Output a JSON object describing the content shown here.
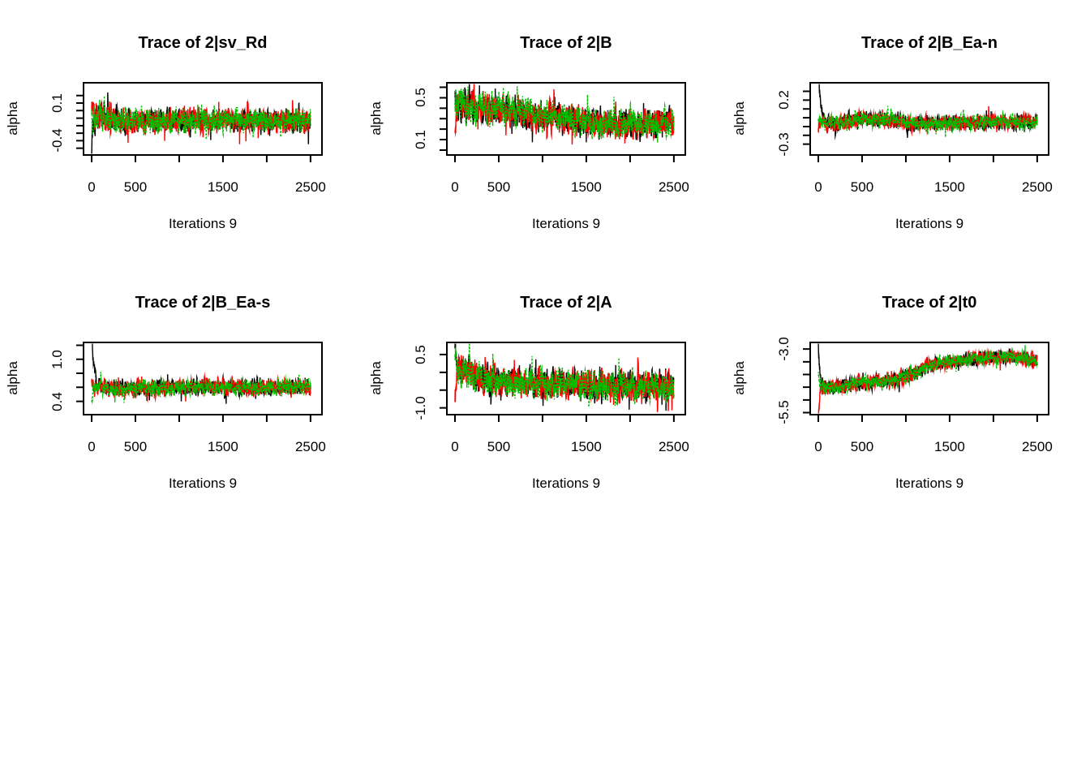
{
  "figure": {
    "background": "#ffffff",
    "kind": "mcmc-trace-plot-grid",
    "rows": 2,
    "cols": 3
  },
  "chain_colors": {
    "chain1": "#000000",
    "chain2": "#FF0000",
    "chain3": "#00BF00"
  },
  "chart_data": [
    {
      "type": "line",
      "title": "Trace of 2|sv_Rd",
      "xlabel": "Iterations 9",
      "ylabel": "alpha",
      "x_range": [
        0,
        2500
      ],
      "xticks": [
        0,
        500,
        1000,
        1500,
        2000,
        2500
      ],
      "xtick_labels": [
        {
          "value": 0,
          "text": "0"
        },
        {
          "value": 500,
          "text": "500"
        },
        {
          "value": 1500,
          "text": "1500"
        },
        {
          "value": 2500,
          "text": "2500"
        }
      ],
      "ylim": [
        -0.59,
        0.37
      ],
      "yticks": [
        0.2,
        0.1,
        0.0,
        -0.1,
        -0.2,
        -0.3,
        -0.4,
        -0.5
      ],
      "ytick_labels": [
        {
          "value": 0.1,
          "text": "0.1"
        },
        {
          "value": -0.4,
          "text": "-0.4"
        }
      ],
      "grid": false,
      "legend": "none",
      "mean_path": [
        [
          0,
          -0.07
        ],
        [
          250,
          -0.11
        ],
        [
          600,
          -0.13
        ],
        [
          2500,
          -0.14
        ]
      ],
      "noise_amp": [
        [
          0,
          0.15
        ],
        [
          450,
          0.12
        ],
        [
          2500,
          0.12
        ]
      ],
      "series": [
        {
          "name": "chain-1",
          "color": "#000000",
          "dash": [],
          "seed": 101,
          "start": -0.68,
          "tau": 10
        },
        {
          "name": "chain-2",
          "color": "#FF0000",
          "dash": [],
          "seed": 102,
          "start": -0.02,
          "tau": 10
        },
        {
          "name": "chain-3",
          "color": "#00BF00",
          "dash": [
            2.5,
            1.8
          ],
          "seed": 103,
          "start": -0.18,
          "tau": 10
        }
      ]
    },
    {
      "type": "line",
      "title": "Trace of 2|B",
      "xlabel": "Iterations 9",
      "ylabel": "alpha",
      "x_range": [
        0,
        2500
      ],
      "xticks": [
        0,
        500,
        1000,
        1500,
        2000,
        2500
      ],
      "xtick_labels": [
        {
          "value": 0,
          "text": "0"
        },
        {
          "value": 500,
          "text": "500"
        },
        {
          "value": 1500,
          "text": "1500"
        },
        {
          "value": 2500,
          "text": "2500"
        }
      ],
      "ylim": [
        -0.047,
        0.643
      ],
      "yticks": [
        0.6,
        0.5,
        0.4,
        0.3,
        0.2,
        0.1,
        0.0
      ],
      "ytick_labels": [
        {
          "value": 0.5,
          "text": "0.5"
        },
        {
          "value": 0.1,
          "text": "0.1"
        }
      ],
      "grid": false,
      "legend": "none",
      "mean_path": [
        [
          0,
          0.42
        ],
        [
          400,
          0.4
        ],
        [
          900,
          0.33
        ],
        [
          1600,
          0.26
        ],
        [
          2100,
          0.25
        ],
        [
          2500,
          0.27
        ]
      ],
      "noise_amp": [
        [
          0,
          0.11
        ],
        [
          2500,
          0.1
        ]
      ],
      "series": [
        {
          "name": "chain-1",
          "color": "#000000",
          "dash": [],
          "seed": 201,
          "start": 0.52,
          "tau": 10
        },
        {
          "name": "chain-2",
          "color": "#FF0000",
          "dash": [],
          "seed": 202,
          "start": 0.07,
          "tau": 10
        },
        {
          "name": "chain-3",
          "color": "#00BF00",
          "dash": [
            2.5,
            1.8
          ],
          "seed": 203,
          "start": 0.5,
          "tau": 10
        }
      ]
    },
    {
      "type": "line",
      "title": "Trace of 2|B_Ea-n",
      "xlabel": "Iterations 9",
      "ylabel": "alpha",
      "x_range": [
        0,
        2500
      ],
      "xticks": [
        0,
        500,
        1000,
        1500,
        2000,
        2500
      ],
      "xtick_labels": [
        {
          "value": 0,
          "text": "0"
        },
        {
          "value": 500,
          "text": "500"
        },
        {
          "value": 1500,
          "text": "1500"
        },
        {
          "value": 2500,
          "text": "2500"
        }
      ],
      "ylim": [
        -0.423,
        0.397
      ],
      "yticks": [
        0.3,
        0.2,
        0.1,
        0.0,
        -0.1,
        -0.2,
        -0.3
      ],
      "ytick_labels": [
        {
          "value": 0.2,
          "text": "0.2"
        },
        {
          "value": -0.3,
          "text": "-0.3"
        }
      ],
      "grid": false,
      "legend": "none",
      "mean_path": [
        [
          0,
          -0.06
        ],
        [
          200,
          -0.07
        ],
        [
          500,
          -0.01
        ],
        [
          800,
          -0.03
        ],
        [
          1200,
          -0.07
        ],
        [
          1800,
          -0.05
        ],
        [
          2500,
          -0.045
        ]
      ],
      "noise_amp": [
        [
          0,
          0.065
        ],
        [
          2500,
          0.062
        ]
      ],
      "series": [
        {
          "name": "chain-1",
          "color": "#000000",
          "dash": [],
          "seed": 301,
          "start": 0.55,
          "tau": 28
        },
        {
          "name": "chain-2",
          "color": "#FF0000",
          "dash": [],
          "seed": 302,
          "start": -0.18,
          "tau": 10
        },
        {
          "name": "chain-3",
          "color": "#00BF00",
          "dash": [
            2.5,
            1.8
          ],
          "seed": 303,
          "start": -0.05,
          "tau": 10
        }
      ]
    },
    {
      "type": "line",
      "title": "Trace of 2|B_Ea-s",
      "xlabel": "Iterations 9",
      "ylabel": "alpha",
      "x_range": [
        0,
        2500
      ],
      "xticks": [
        0,
        500,
        1000,
        1500,
        2000,
        2500
      ],
      "xtick_labels": [
        {
          "value": 0,
          "text": "0"
        },
        {
          "value": 500,
          "text": "500"
        },
        {
          "value": 1500,
          "text": "1500"
        },
        {
          "value": 2500,
          "text": "2500"
        }
      ],
      "ylim": [
        0.21,
        1.24
      ],
      "yticks": [
        1.2,
        1.0,
        0.8,
        0.6,
        0.4
      ],
      "ytick_labels": [
        {
          "value": 1.0,
          "text": "1.0"
        },
        {
          "value": 0.4,
          "text": "0.4"
        }
      ],
      "grid": false,
      "legend": "none",
      "mean_path": [
        [
          0,
          0.6
        ],
        [
          300,
          0.58
        ],
        [
          1200,
          0.6
        ],
        [
          2500,
          0.6
        ]
      ],
      "noise_amp": [
        [
          0,
          0.085
        ],
        [
          2500,
          0.083
        ]
      ],
      "series": [
        {
          "name": "chain-1",
          "color": "#000000",
          "dash": [],
          "seed": 401,
          "start": 1.5,
          "tau": 22
        },
        {
          "name": "chain-2",
          "color": "#FF0000",
          "dash": [],
          "seed": 402,
          "start": 0.62,
          "tau": 10
        },
        {
          "name": "chain-3",
          "color": "#00BF00",
          "dash": [
            2.5,
            1.8
          ],
          "seed": 403,
          "start": 0.45,
          "tau": 10
        }
      ]
    },
    {
      "type": "line",
      "title": "Trace of 2|A",
      "xlabel": "Iterations 9",
      "ylabel": "alpha",
      "x_range": [
        0,
        2500
      ],
      "xticks": [
        0,
        500,
        1000,
        1500,
        2000,
        2500
      ],
      "xtick_labels": [
        {
          "value": 0,
          "text": "0"
        },
        {
          "value": 500,
          "text": "500"
        },
        {
          "value": 1500,
          "text": "1500"
        },
        {
          "value": 2500,
          "text": "2500"
        }
      ],
      "ylim": [
        -1.19,
        0.84
      ],
      "yticks": [
        0.5,
        0.0,
        -0.5,
        -1.0
      ],
      "ytick_labels": [
        {
          "value": 0.5,
          "text": "0.5"
        },
        {
          "value": -1.0,
          "text": "-1.0"
        }
      ],
      "grid": false,
      "legend": "none",
      "mean_path": [
        [
          0,
          0.05
        ],
        [
          150,
          0.0
        ],
        [
          450,
          -0.25
        ],
        [
          1200,
          -0.35
        ],
        [
          2500,
          -0.4
        ]
      ],
      "noise_amp": [
        [
          0,
          0.35
        ],
        [
          600,
          0.31
        ],
        [
          2500,
          0.31
        ]
      ],
      "series": [
        {
          "name": "chain-1",
          "color": "#000000",
          "dash": [],
          "seed": 501,
          "start": 0.88,
          "tau": 14
        },
        {
          "name": "chain-2",
          "color": "#FF0000",
          "dash": [],
          "seed": 502,
          "start": -1.15,
          "tau": 12
        },
        {
          "name": "chain-3",
          "color": "#00BF00",
          "dash": [
            2.5,
            1.8
          ],
          "seed": 503,
          "start": 0.35,
          "tau": 10
        }
      ]
    },
    {
      "type": "line",
      "title": "Trace of 2|t0",
      "xlabel": "Iterations 9",
      "ylabel": "alpha",
      "x_range": [
        0,
        2500
      ],
      "xticks": [
        0,
        500,
        1000,
        1500,
        2000,
        2500
      ],
      "xtick_labels": [
        {
          "value": 0,
          "text": "0"
        },
        {
          "value": 500,
          "text": "500"
        },
        {
          "value": 1500,
          "text": "1500"
        },
        {
          "value": 2500,
          "text": "2500"
        }
      ],
      "ylim": [
        -5.58,
        -2.74
      ],
      "yticks": [
        -3.0,
        -3.5,
        -4.0,
        -4.5,
        -5.0,
        -5.5
      ],
      "ytick_labels": [
        {
          "value": -3.0,
          "text": "-3.0"
        },
        {
          "value": -5.5,
          "text": "-5.5"
        }
      ],
      "grid": false,
      "legend": "none",
      "mean_path": [
        [
          0,
          -4.35
        ],
        [
          80,
          -4.55
        ],
        [
          300,
          -4.45
        ],
        [
          600,
          -4.3
        ],
        [
          900,
          -4.2
        ],
        [
          1100,
          -3.95
        ],
        [
          1300,
          -3.6
        ],
        [
          1600,
          -3.45
        ],
        [
          1900,
          -3.35
        ],
        [
          2200,
          -3.3
        ],
        [
          2500,
          -3.45
        ]
      ],
      "noise_amp": [
        [
          0,
          0.21
        ],
        [
          2500,
          0.2
        ]
      ],
      "series": [
        {
          "name": "chain-1",
          "color": "#000000",
          "dash": [],
          "seed": 601,
          "start": -2.75,
          "tau": 16
        },
        {
          "name": "chain-2",
          "color": "#FF0000",
          "dash": [],
          "seed": 602,
          "start": -5.75,
          "tau": 14
        },
        {
          "name": "chain-3",
          "color": "#00BF00",
          "dash": [
            2.5,
            1.8
          ],
          "seed": 607,
          "start": -4.15,
          "tau": 10
        }
      ]
    }
  ]
}
